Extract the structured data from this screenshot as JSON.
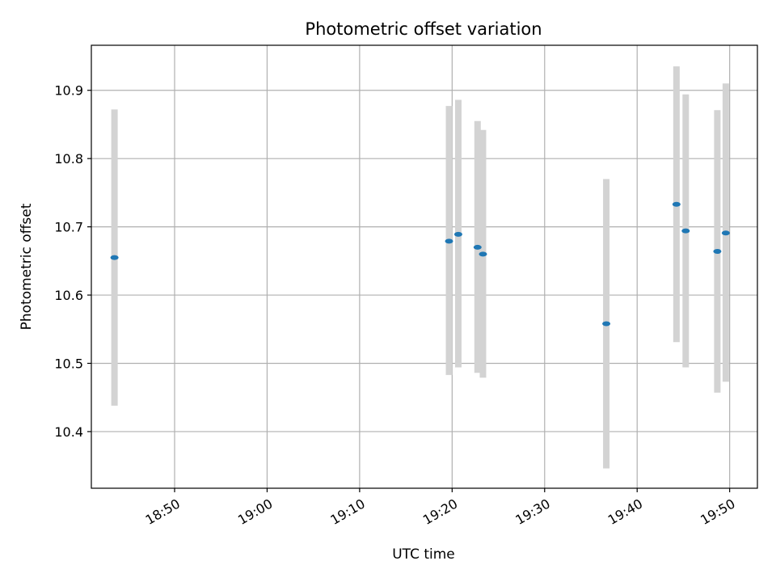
{
  "chart_data": {
    "type": "scatter",
    "title": "Photometric offset variation",
    "xlabel": "UTC time",
    "ylabel": "Photometric offset",
    "xlim": [
      "18:41:00",
      "19:53:00"
    ],
    "ylim": [
      10.317,
      10.966
    ],
    "x_ticks": [
      "18:50",
      "19:00",
      "19:10",
      "19:20",
      "19:30",
      "19:40",
      "19:50"
    ],
    "y_ticks": [
      "10.4",
      "10.5",
      "10.6",
      "10.7",
      "10.8",
      "10.9"
    ],
    "grid": true,
    "marker_color": "#1f77b4",
    "errorbar_color": "#d3d3d3",
    "points": [
      {
        "time": "18:43:30",
        "value": 10.655,
        "lower": 10.438,
        "upper": 10.872
      },
      {
        "time": "19:19:40",
        "value": 10.679,
        "lower": 10.483,
        "upper": 10.877
      },
      {
        "time": "19:20:40",
        "value": 10.689,
        "lower": 10.494,
        "upper": 10.886
      },
      {
        "time": "19:22:45",
        "value": 10.67,
        "lower": 10.486,
        "upper": 10.855
      },
      {
        "time": "19:23:20",
        "value": 10.66,
        "lower": 10.479,
        "upper": 10.842
      },
      {
        "time": "19:36:40",
        "value": 10.558,
        "lower": 10.346,
        "upper": 10.77
      },
      {
        "time": "19:44:15",
        "value": 10.733,
        "lower": 10.531,
        "upper": 10.935
      },
      {
        "time": "19:45:15",
        "value": 10.694,
        "lower": 10.494,
        "upper": 10.894
      },
      {
        "time": "19:48:40",
        "value": 10.664,
        "lower": 10.457,
        "upper": 10.871
      },
      {
        "time": "19:49:35",
        "value": 10.691,
        "lower": 10.473,
        "upper": 10.91
      }
    ]
  }
}
